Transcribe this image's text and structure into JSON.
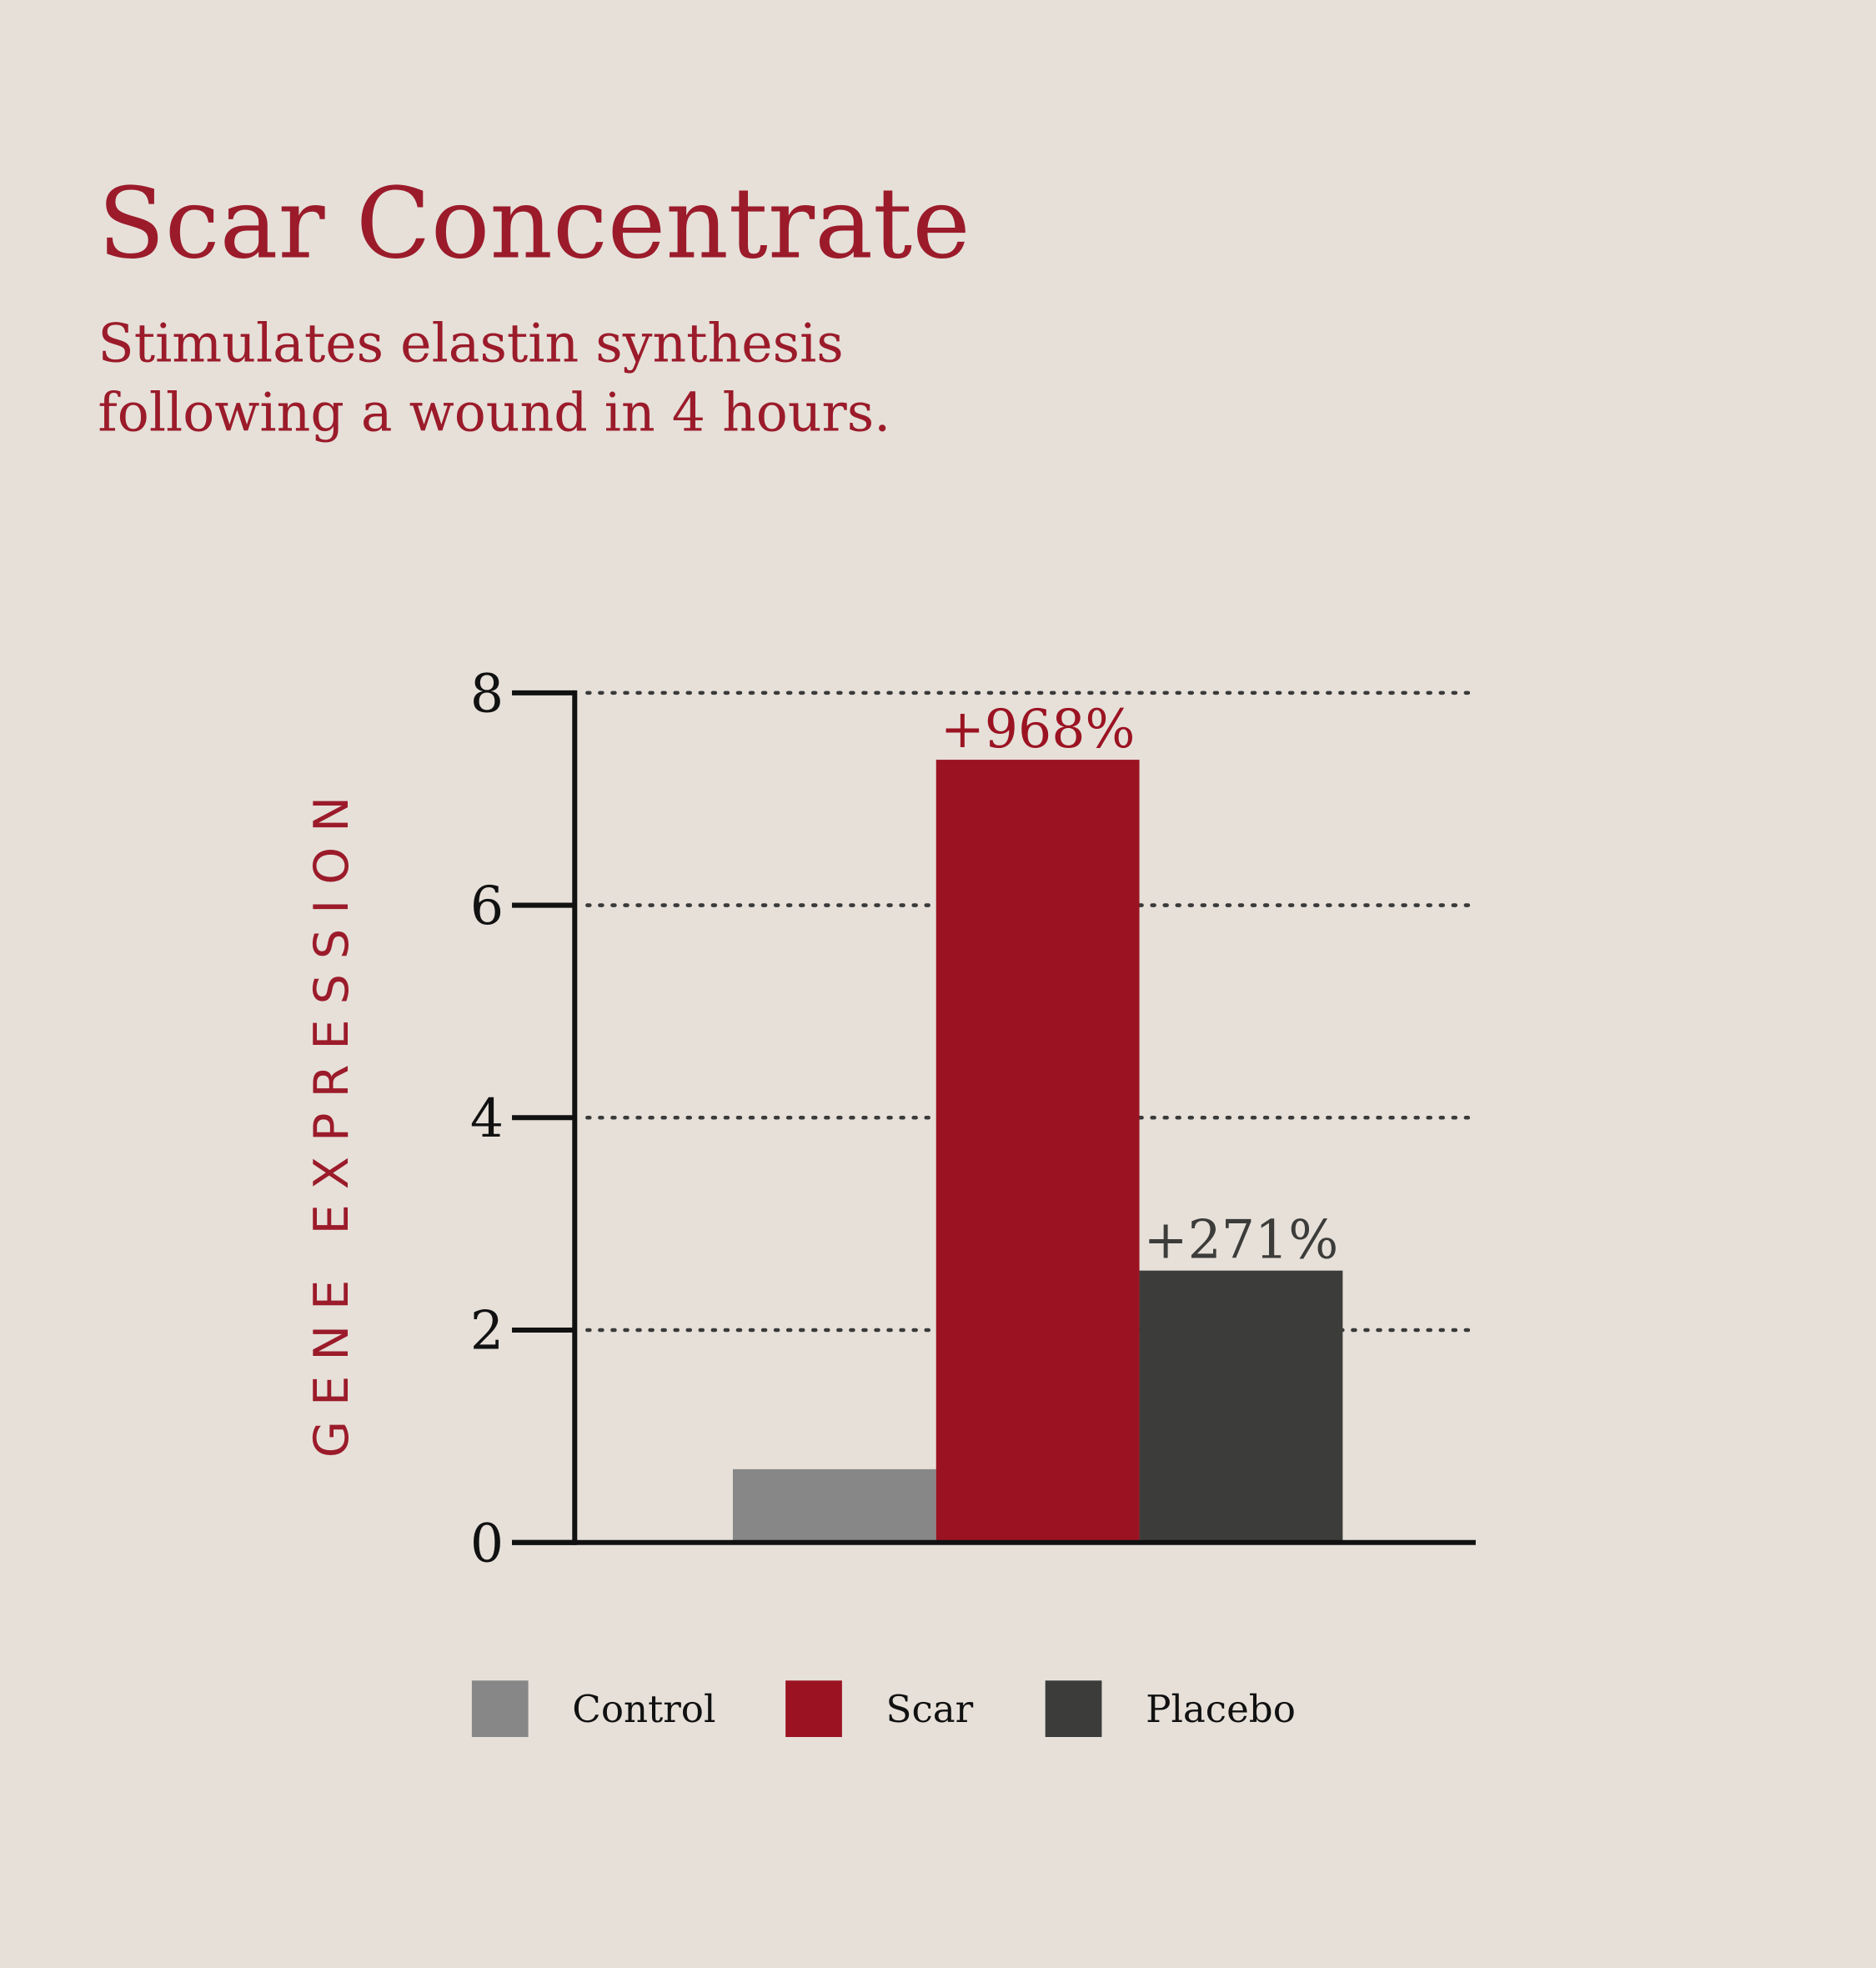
{
  "chart_data": {
    "type": "bar",
    "title": "Scar Concentrate",
    "subtitle": [
      "Stimulates elastin synthesis",
      "following a wound in 4 hours."
    ],
    "y_label": "GENE EXPRESSION",
    "categories": [
      null
    ],
    "series": [
      {
        "name": "Control",
        "color": "#878787",
        "values": [
          0.69
        ]
      },
      {
        "name": "Scar",
        "color": "#9b1322",
        "values": [
          7.37
        ],
        "annotation": "+968%",
        "annotation_color": "#9b1322"
      },
      {
        "name": "Placebo",
        "color": "#3c3c3a",
        "values": [
          2.56
        ],
        "annotation": "+271%",
        "annotation_color": "#3c3c3a"
      }
    ],
    "ylim": [
      0,
      8
    ],
    "yticks": [
      0,
      2,
      4,
      6,
      8
    ],
    "grid": true,
    "legend": "bottom"
  }
}
